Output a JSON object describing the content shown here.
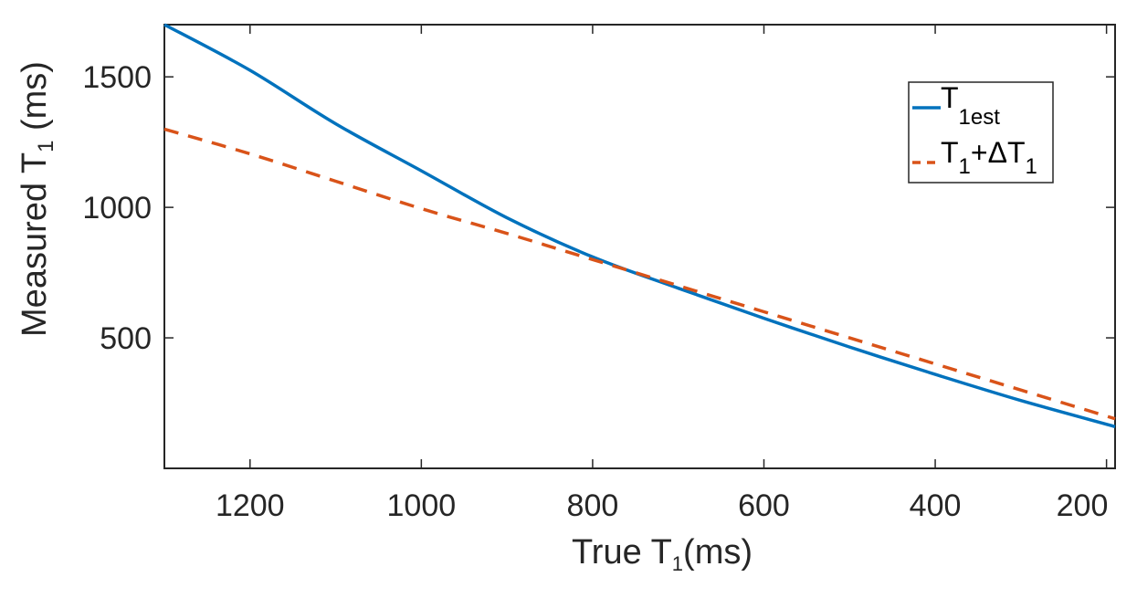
{
  "chart_data": {
    "type": "line",
    "xlabel": {
      "main": "True T",
      "sub": "1",
      "suffix": "(ms)"
    },
    "ylabel": {
      "main": "Measured T",
      "sub": "1",
      "suffix": " (ms)"
    },
    "xlim": [
      1300,
      190
    ],
    "ylim": [
      0,
      1700
    ],
    "x_reversed": true,
    "xticks": [
      1200,
      1000,
      800,
      600,
      400,
      200
    ],
    "yticks": [
      500,
      1000,
      1500
    ],
    "grid": false,
    "legend_position": "top-right",
    "series": [
      {
        "name": "T1est",
        "legend": {
          "main": "T",
          "sub": "1est",
          "post": "",
          "post_sub": ""
        },
        "color": "#0072BD",
        "style": "solid",
        "x": [
          1300,
          1200,
          1100,
          1000,
          900,
          800,
          700,
          600,
          500,
          400,
          300,
          190
        ],
        "y": [
          1700,
          1525,
          1320,
          1140,
          960,
          810,
          690,
          575,
          465,
          360,
          260,
          160
        ]
      },
      {
        "name": "T1+ΔT1",
        "legend": {
          "main": "T",
          "sub": "1",
          "post": "+ΔT",
          "post_sub": "1"
        },
        "color": "#D95319",
        "style": "dashed",
        "x": [
          1300,
          1200,
          1100,
          1000,
          900,
          800,
          700,
          600,
          500,
          400,
          300,
          190
        ],
        "y": [
          1300,
          1205,
          1100,
          995,
          900,
          800,
          700,
          600,
          500,
          400,
          300,
          190
        ]
      }
    ]
  }
}
